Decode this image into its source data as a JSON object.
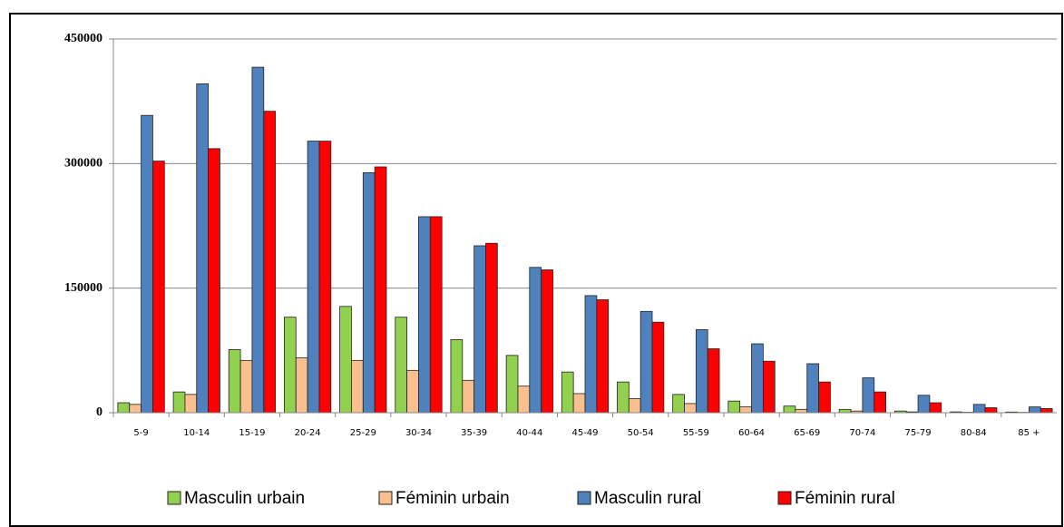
{
  "chart_data": {
    "type": "bar",
    "categories": [
      "5-9",
      "10-14",
      "15-19",
      "20-24",
      "25-29",
      "30-34",
      "35-39",
      "40-44",
      "45-49",
      "50-54",
      "55-59",
      "60-64",
      "65-69",
      "70-74",
      "75-79",
      "80-84",
      "85 +"
    ],
    "series": [
      {
        "name": "Masculin urbain",
        "color": "#92d050",
        "values": [
          12000,
          25000,
          76000,
          115000,
          128000,
          115000,
          88000,
          69000,
          49000,
          37000,
          22000,
          14000,
          8000,
          4000,
          2000,
          1000,
          800
        ]
      },
      {
        "name": "Féminin urbain",
        "color": "#fabf8f",
        "values": [
          10000,
          22000,
          63000,
          66000,
          63000,
          51000,
          39000,
          32000,
          23000,
          17000,
          11000,
          7000,
          4000,
          2000,
          1000,
          500,
          400
        ]
      },
      {
        "name": "Masculin rural",
        "color": "#4f81bd",
        "values": [
          358000,
          396000,
          416000,
          327000,
          289000,
          236000,
          201000,
          175000,
          141000,
          122000,
          100000,
          83000,
          59000,
          42000,
          21000,
          10000,
          7000
        ]
      },
      {
        "name": "Féminin rural",
        "color": "#ff0000",
        "values": [
          303000,
          318000,
          363000,
          327000,
          296000,
          236000,
          204000,
          172000,
          136000,
          109000,
          77000,
          62000,
          37000,
          25000,
          12000,
          6000,
          5000
        ]
      }
    ],
    "ylim": [
      0,
      450000
    ],
    "yticks": [
      0,
      150000,
      300000,
      450000
    ],
    "grid": true,
    "legend": "bottom"
  }
}
